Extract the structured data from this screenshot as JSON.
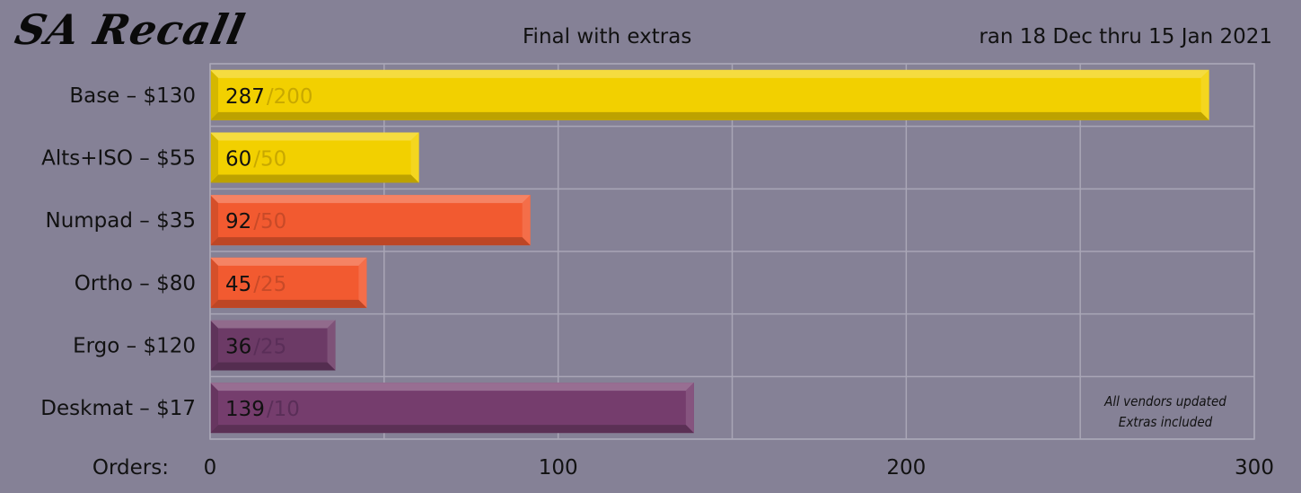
{
  "header": {
    "logo": "SA Recall",
    "subtitle": "Final with extras",
    "date_range": "ran 18 Dec thru 15 Jan 2021"
  },
  "chart_data": {
    "type": "bar",
    "orientation": "horizontal",
    "categories": [
      "Base – $130",
      "Alts+ISO – $55",
      "Numpad – $35",
      "Ortho – $80",
      "Ergo – $120",
      "Deskmat – $17"
    ],
    "series": [
      {
        "values": [
          287,
          60,
          92,
          45,
          36,
          139
        ]
      },
      {
        "values": [
          200,
          50,
          50,
          25,
          25,
          10
        ]
      }
    ],
    "bar_colors": [
      "#f2d000",
      "#f2d000",
      "#f25a30",
      "#f25a30",
      "#6c3a66",
      "#753d6d"
    ],
    "goal_text_colors": [
      "#c8a800",
      "#c8a800",
      "#c84a28",
      "#c84a28",
      "#5a2e58",
      "#5a2e58"
    ],
    "xlabel": "Orders:",
    "xlim": [
      0,
      300
    ],
    "xticks": [
      0,
      100,
      200,
      300
    ],
    "grid": true,
    "annotations": [
      "All vendors updated",
      "Extras included"
    ]
  }
}
